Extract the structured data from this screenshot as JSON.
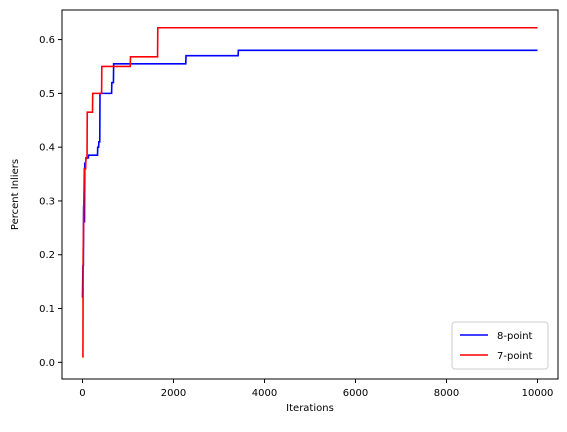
{
  "chart_data": {
    "type": "line",
    "xlabel": "Iterations",
    "ylabel": "Percent Inliers",
    "xlim": [
      -450,
      10450
    ],
    "ylim": [
      -0.031,
      0.655
    ],
    "xticks": [
      0,
      2000,
      4000,
      6000,
      8000,
      10000
    ],
    "xtick_labels": [
      "0",
      "2000",
      "4000",
      "6000",
      "8000",
      "10000"
    ],
    "yticks": [
      0.0,
      0.1,
      0.2,
      0.3,
      0.4,
      0.5,
      0.6
    ],
    "ytick_labels": [
      "0.0",
      "0.1",
      "0.2",
      "0.3",
      "0.4",
      "0.5",
      "0.6"
    ],
    "grid": false,
    "legend_position": "lower-right",
    "series": [
      {
        "name": "8-point",
        "color": "#0000ff",
        "points": [
          [
            0,
            0.12
          ],
          [
            10,
            0.18
          ],
          [
            20,
            0.18
          ],
          [
            25,
            0.29
          ],
          [
            40,
            0.29
          ],
          [
            45,
            0.26
          ],
          [
            50,
            0.37
          ],
          [
            70,
            0.37
          ],
          [
            75,
            0.38
          ],
          [
            130,
            0.38
          ],
          [
            135,
            0.385
          ],
          [
            330,
            0.385
          ],
          [
            335,
            0.4
          ],
          [
            355,
            0.4
          ],
          [
            360,
            0.41
          ],
          [
            380,
            0.41
          ],
          [
            385,
            0.5
          ],
          [
            640,
            0.5
          ],
          [
            645,
            0.52
          ],
          [
            680,
            0.52
          ],
          [
            685,
            0.555
          ],
          [
            2270,
            0.555
          ],
          [
            2275,
            0.57
          ],
          [
            3420,
            0.57
          ],
          [
            3425,
            0.58
          ],
          [
            10000,
            0.58
          ]
        ]
      },
      {
        "name": "7-point",
        "color": "#ff0000",
        "points": [
          [
            0,
            0.01
          ],
          [
            10,
            0.01
          ],
          [
            15,
            0.2
          ],
          [
            40,
            0.36
          ],
          [
            70,
            0.36
          ],
          [
            75,
            0.38
          ],
          [
            100,
            0.38
          ],
          [
            105,
            0.465
          ],
          [
            220,
            0.465
          ],
          [
            225,
            0.5
          ],
          [
            420,
            0.5
          ],
          [
            425,
            0.55
          ],
          [
            1050,
            0.55
          ],
          [
            1055,
            0.568
          ],
          [
            1650,
            0.568
          ],
          [
            1655,
            0.622
          ],
          [
            10000,
            0.622
          ]
        ]
      }
    ]
  }
}
